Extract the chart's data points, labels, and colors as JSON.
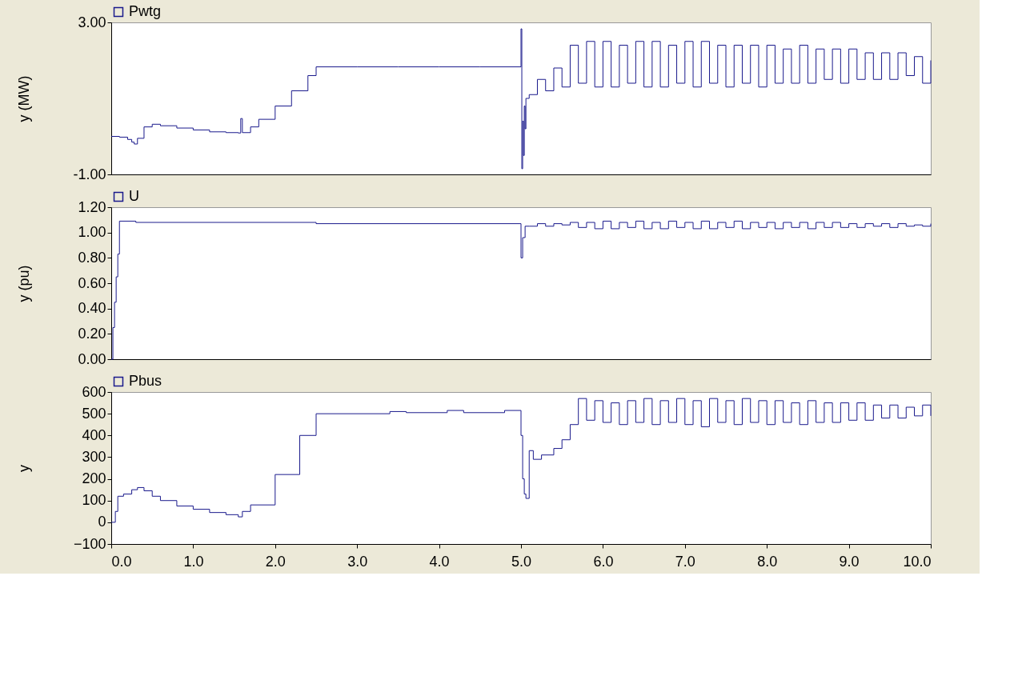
{
  "chart_data": [
    {
      "type": "step",
      "ylabel": "y (MW)",
      "legend": "top left",
      "tick_labels": "y",
      "marker": "none",
      "xlim": [
        0,
        10
      ],
      "ylim": [
        -1,
        3
      ],
      "yticks": [
        {
          "value": -1,
          "label": "-1.00"
        },
        {
          "value": 3,
          "label": "3.00"
        }
      ],
      "x": [
        0,
        0.1,
        0.2,
        0.25,
        0.28,
        0.32,
        0.4,
        0.5,
        0.6,
        0.8,
        1.0,
        1.2,
        1.4,
        1.55,
        1.58,
        1.6,
        1.7,
        1.8,
        2.0,
        2.2,
        2.4,
        2.5,
        3.0,
        3.5,
        4.0,
        4.5,
        4.99,
        5.0,
        5.01,
        5.02,
        5.03,
        5.04,
        5.05,
        5.06,
        5.1,
        5.2,
        5.3,
        5.4,
        5.5,
        5.6,
        5.7,
        5.8,
        5.9,
        6.0,
        6.1,
        6.2,
        6.3,
        6.4,
        6.5,
        6.6,
        6.7,
        6.8,
        6.9,
        7.0,
        7.1,
        7.2,
        7.3,
        7.4,
        7.5,
        7.6,
        7.7,
        7.8,
        7.9,
        8.0,
        8.1,
        8.2,
        8.3,
        8.4,
        8.5,
        8.6,
        8.7,
        8.8,
        8.9,
        9.0,
        9.1,
        9.2,
        9.3,
        9.4,
        9.5,
        9.6,
        9.7,
        9.8,
        9.9,
        10.0
      ],
      "series": [
        {
          "name": "Pwtg",
          "color": "#1a1a8c",
          "values": [
            0.0,
            -0.02,
            -0.08,
            -0.15,
            -0.2,
            -0.05,
            0.25,
            0.32,
            0.28,
            0.22,
            0.17,
            0.12,
            0.1,
            0.09,
            0.47,
            0.1,
            0.25,
            0.45,
            0.8,
            1.2,
            1.6,
            1.83,
            1.83,
            1.83,
            1.83,
            1.83,
            1.83,
            2.83,
            -0.85,
            0.4,
            -0.5,
            0.8,
            0.2,
            1.0,
            1.1,
            1.5,
            1.2,
            1.8,
            1.3,
            2.4,
            1.4,
            2.5,
            1.3,
            2.5,
            1.3,
            2.4,
            1.4,
            2.5,
            1.3,
            2.5,
            1.3,
            2.4,
            1.4,
            2.5,
            1.3,
            2.5,
            1.4,
            2.4,
            1.3,
            2.4,
            1.4,
            2.4,
            1.3,
            2.4,
            1.4,
            2.3,
            1.4,
            2.4,
            1.4,
            2.3,
            1.5,
            2.3,
            1.4,
            2.3,
            1.5,
            2.2,
            1.5,
            2.2,
            1.5,
            2.2,
            1.6,
            2.1,
            1.4,
            2.0
          ]
        }
      ]
    },
    {
      "type": "step",
      "ylabel": "y (pu)",
      "legend": "top left",
      "tick_labels": "y",
      "marker": "none",
      "xlim": [
        0,
        10
      ],
      "ylim": [
        0,
        1.2
      ],
      "yticks": [
        {
          "value": 0,
          "label": "0.00"
        },
        {
          "value": 0.2,
          "label": "0.20"
        },
        {
          "value": 0.4,
          "label": "0.40"
        },
        {
          "value": 0.6,
          "label": "0.60"
        },
        {
          "value": 0.8,
          "label": "0.80"
        },
        {
          "value": 1.0,
          "label": "1.00"
        },
        {
          "value": 1.2,
          "label": "1.20"
        }
      ],
      "x": [
        0,
        0.02,
        0.04,
        0.06,
        0.08,
        0.1,
        0.3,
        2.5,
        4.99,
        5.0,
        5.02,
        5.05,
        5.1,
        5.2,
        5.3,
        5.4,
        5.5,
        5.6,
        5.7,
        5.8,
        5.9,
        6.0,
        6.1,
        6.2,
        6.3,
        6.4,
        6.5,
        6.6,
        6.7,
        6.8,
        6.9,
        7.0,
        7.1,
        7.2,
        7.3,
        7.4,
        7.5,
        7.6,
        7.7,
        7.8,
        7.9,
        8.0,
        8.1,
        8.2,
        8.3,
        8.4,
        8.5,
        8.6,
        8.7,
        8.8,
        8.9,
        9.0,
        9.1,
        9.2,
        9.3,
        9.4,
        9.5,
        9.6,
        9.7,
        9.8,
        9.9,
        10.0
      ],
      "series": [
        {
          "name": "U",
          "color": "#1a1a8c",
          "values": [
            0,
            0.25,
            0.45,
            0.65,
            0.83,
            1.09,
            1.08,
            1.07,
            1.07,
            0.8,
            0.96,
            1.05,
            1.05,
            1.07,
            1.05,
            1.07,
            1.06,
            1.08,
            1.04,
            1.08,
            1.03,
            1.09,
            1.03,
            1.08,
            1.04,
            1.09,
            1.03,
            1.08,
            1.03,
            1.09,
            1.04,
            1.08,
            1.03,
            1.09,
            1.03,
            1.08,
            1.04,
            1.09,
            1.03,
            1.08,
            1.04,
            1.08,
            1.03,
            1.08,
            1.04,
            1.08,
            1.03,
            1.08,
            1.04,
            1.08,
            1.04,
            1.07,
            1.04,
            1.07,
            1.05,
            1.07,
            1.04,
            1.07,
            1.05,
            1.06,
            1.05,
            1.07
          ]
        }
      ]
    },
    {
      "type": "step",
      "ylabel": "y",
      "legend": "top left",
      "marker": "none",
      "xlim": [
        0,
        10
      ],
      "xticks": [
        {
          "value": 0,
          "label": "0.0"
        },
        {
          "value": 1,
          "label": "1.0"
        },
        {
          "value": 2,
          "label": "2.0"
        },
        {
          "value": 3,
          "label": "3.0"
        },
        {
          "value": 4,
          "label": "4.0"
        },
        {
          "value": 5,
          "label": "5.0"
        },
        {
          "value": 6,
          "label": "6.0"
        },
        {
          "value": 7,
          "label": "7.0"
        },
        {
          "value": 8,
          "label": "8.0"
        },
        {
          "value": 9,
          "label": "9.0"
        },
        {
          "value": 10,
          "label": "10.0"
        }
      ],
      "ylim": [
        -100,
        600
      ],
      "yticks": [
        -100,
        0,
        100,
        200,
        300,
        400,
        500,
        600
      ],
      "x": [
        0,
        0.05,
        0.08,
        0.15,
        0.25,
        0.32,
        0.4,
        0.5,
        0.6,
        0.8,
        1.0,
        1.2,
        1.4,
        1.55,
        1.6,
        1.7,
        2.0,
        2.3,
        2.5,
        3.4,
        3.6,
        4.1,
        4.3,
        4.8,
        5.0,
        5.02,
        5.04,
        5.06,
        5.1,
        5.15,
        5.25,
        5.4,
        5.5,
        5.6,
        5.7,
        5.8,
        5.9,
        6.0,
        6.1,
        6.2,
        6.3,
        6.4,
        6.5,
        6.6,
        6.7,
        6.8,
        6.9,
        7.0,
        7.1,
        7.2,
        7.3,
        7.4,
        7.5,
        7.6,
        7.7,
        7.8,
        7.9,
        8.0,
        8.1,
        8.2,
        8.3,
        8.4,
        8.5,
        8.6,
        8.7,
        8.8,
        8.9,
        9.0,
        9.1,
        9.2,
        9.3,
        9.4,
        9.5,
        9.6,
        9.7,
        9.8,
        9.9,
        10.0
      ],
      "series": [
        {
          "name": "Pbus",
          "color": "#1a1a8c",
          "values": [
            0,
            50,
            120,
            130,
            150,
            160,
            145,
            120,
            100,
            75,
            60,
            45,
            35,
            25,
            50,
            80,
            220,
            400,
            500,
            510,
            505,
            515,
            505,
            515,
            400,
            200,
            130,
            110,
            330,
            290,
            310,
            340,
            380,
            450,
            570,
            470,
            560,
            460,
            550,
            450,
            560,
            460,
            570,
            450,
            560,
            460,
            570,
            450,
            560,
            440,
            570,
            460,
            560,
            450,
            570,
            460,
            560,
            450,
            560,
            460,
            550,
            450,
            560,
            460,
            550,
            460,
            550,
            470,
            550,
            470,
            540,
            480,
            540,
            480,
            530,
            490,
            540,
            490
          ]
        }
      ]
    }
  ]
}
